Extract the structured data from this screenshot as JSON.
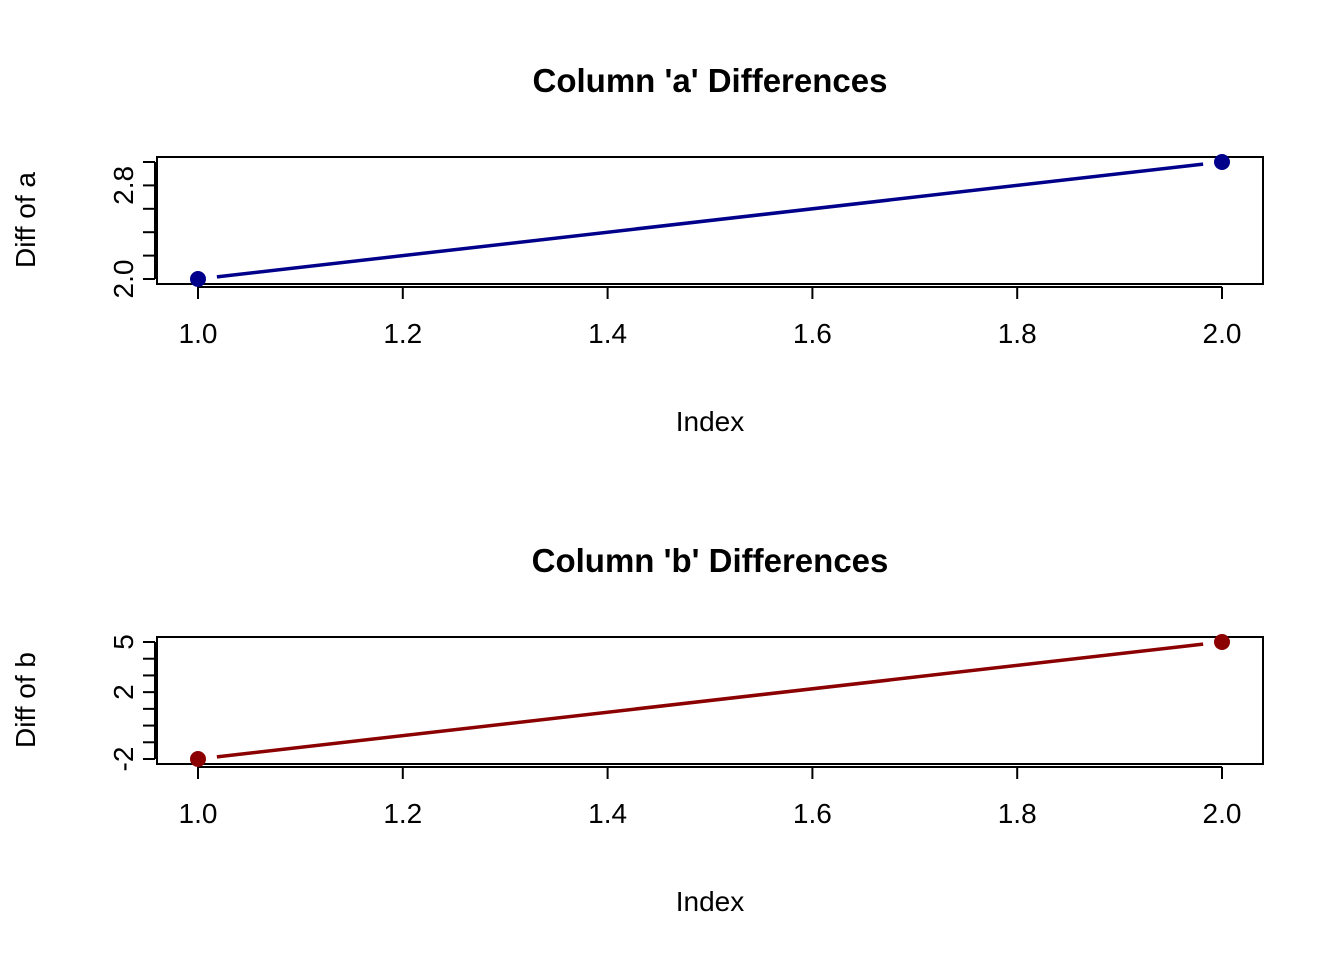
{
  "chart_data": [
    {
      "type": "line",
      "title": "Column 'a' Differences",
      "xlabel": "Index",
      "ylabel": "Diff of a",
      "x": [
        1,
        2
      ],
      "series": [
        {
          "values": [
            2.0,
            3.0
          ]
        }
      ],
      "xlim": [
        1,
        2
      ],
      "ylim": [
        2.0,
        3.0
      ],
      "x_ticks": [
        1.0,
        1.2,
        1.4,
        1.6,
        1.8,
        2.0
      ],
      "x_tick_labels": [
        "1.0",
        "1.2",
        "1.4",
        "1.6",
        "1.8",
        "2.0"
      ],
      "y_ticks": [
        2.0,
        2.2,
        2.4,
        2.6,
        2.8,
        3.0
      ],
      "y_tick_labels": [
        "2.0",
        "",
        "",
        "",
        "2.8",
        ""
      ],
      "color": "#00008b",
      "grid": false,
      "markers": true
    },
    {
      "type": "line",
      "title": "Column 'b' Differences",
      "xlabel": "Index",
      "ylabel": "Diff of b",
      "x": [
        1,
        2
      ],
      "series": [
        {
          "values": [
            -2,
            5
          ]
        }
      ],
      "xlim": [
        1,
        2
      ],
      "ylim": [
        -2,
        5
      ],
      "x_ticks": [
        1.0,
        1.2,
        1.4,
        1.6,
        1.8,
        2.0
      ],
      "x_tick_labels": [
        "1.0",
        "1.2",
        "1.4",
        "1.6",
        "1.8",
        "2.0"
      ],
      "y_ticks": [
        -2,
        -1,
        0,
        1,
        2,
        3,
        4,
        5
      ],
      "y_tick_labels": [
        "-2",
        "",
        "",
        "",
        "2",
        "",
        "",
        "5"
      ],
      "color": "#8b0000",
      "grid": false,
      "markers": true
    }
  ]
}
